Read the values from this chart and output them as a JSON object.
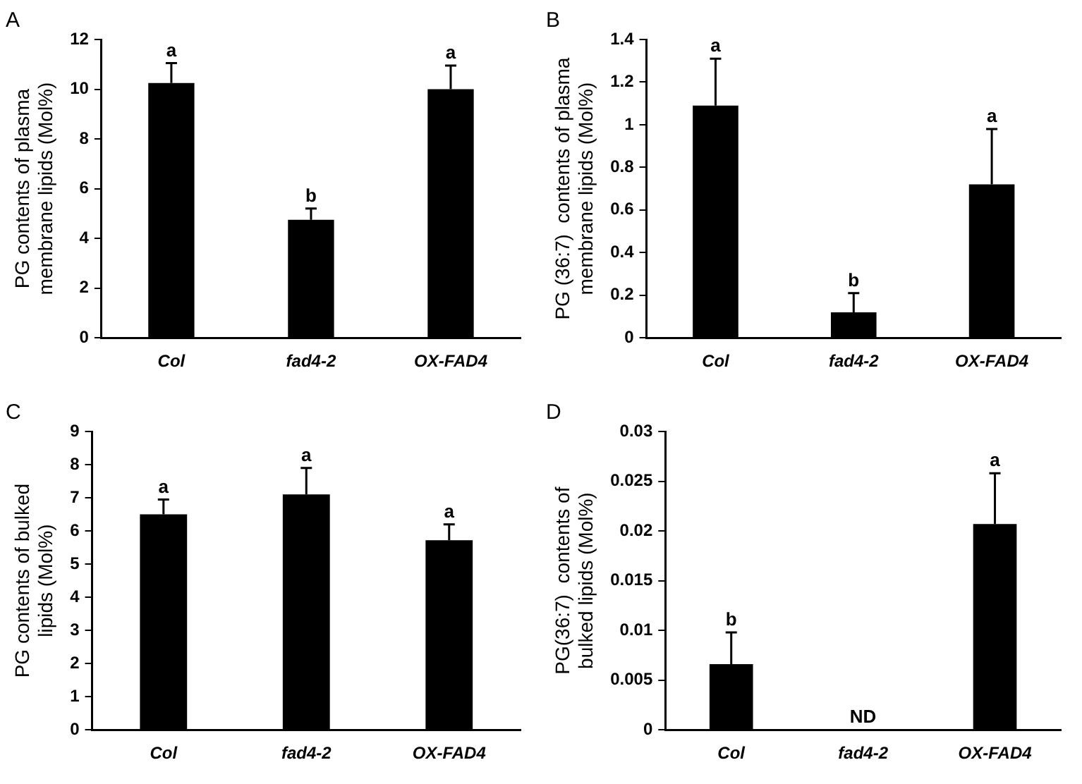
{
  "chart_data": [
    {
      "type": "bar",
      "title": "A",
      "ylabel": "PG contents of plasma\nmembrane lipids (Mol%)",
      "categories": [
        "Col",
        "fad4-2",
        "OX-FAD4"
      ],
      "values": [
        10.25,
        4.75,
        10.0
      ],
      "color": "#000000",
      "errors": [
        [
          10.25,
          11.05
        ],
        [
          4.75,
          5.2
        ],
        [
          10.0,
          10.95
        ]
      ],
      "ylim": [
        0,
        12
      ],
      "yticks": [
        0,
        2,
        4,
        6,
        8,
        10,
        12
      ],
      "grid": false,
      "annotations": [
        {
          "text": "a",
          "x": "Col",
          "y": 11.05
        },
        {
          "text": "b",
          "x": "fad4-2",
          "y": 5.2
        },
        {
          "text": "a",
          "x": "OX-FAD4",
          "y": 10.95
        }
      ]
    },
    {
      "type": "bar",
      "title": "B",
      "ylabel": "PG (36:7)  contents of plasma\nmembrane lipids (Mol%)",
      "categories": [
        "Col",
        "fad4-2",
        "OX-FAD4"
      ],
      "values": [
        1.09,
        0.12,
        0.72
      ],
      "color": "#000000",
      "errors": [
        [
          1.09,
          1.31
        ],
        [
          0.12,
          0.21
        ],
        [
          0.72,
          0.98
        ]
      ],
      "ylim": [
        0,
        1.4
      ],
      "yticks": [
        0,
        0.2,
        0.4,
        0.6,
        0.8,
        1,
        1.2,
        1.4
      ],
      "grid": false,
      "annotations": [
        {
          "text": "a",
          "x": "Col",
          "y": 1.31
        },
        {
          "text": "b",
          "x": "fad4-2",
          "y": 0.21
        },
        {
          "text": "a",
          "x": "OX-FAD4",
          "y": 0.98
        }
      ]
    },
    {
      "type": "bar",
      "title": "C",
      "ylabel": "PG contents of bulked\nlipids (Mol%)",
      "categories": [
        "Col",
        "fad4-2",
        "OX-FAD4"
      ],
      "values": [
        6.5,
        7.1,
        5.72
      ],
      "color": "#000000",
      "errors": [
        [
          6.5,
          6.95
        ],
        [
          7.1,
          7.9
        ],
        [
          5.72,
          6.2
        ]
      ],
      "ylim": [
        0,
        9
      ],
      "yticks": [
        0,
        1,
        2,
        3,
        4,
        5,
        6,
        7,
        8,
        9
      ],
      "grid": false,
      "annotations": [
        {
          "text": "a",
          "x": "Col",
          "y": 6.95
        },
        {
          "text": "a",
          "x": "fad4-2",
          "y": 7.9
        },
        {
          "text": "a",
          "x": "OX-FAD4",
          "y": 6.2
        }
      ]
    },
    {
      "type": "bar",
      "title": "D",
      "ylabel": "PG(36:7)  contents of\nbulked lipids (Mol%)",
      "categories": [
        "Col",
        "fad4-2",
        "OX-FAD4"
      ],
      "values": [
        0.0066,
        null,
        0.0207
      ],
      "color": "#000000",
      "errors": [
        [
          0.0066,
          0.0098
        ],
        null,
        [
          0.0207,
          0.0258
        ]
      ],
      "ylim": [
        0,
        0.03
      ],
      "yticks": [
        0,
        0.005,
        0.01,
        0.015,
        0.02,
        0.025,
        0.03
      ],
      "grid": false,
      "value_labels": [
        null,
        "ND",
        null
      ],
      "annotations": [
        {
          "text": "b",
          "x": "Col",
          "y": 0.0098
        },
        {
          "text": "a",
          "x": "OX-FAD4",
          "y": 0.0258
        }
      ]
    }
  ]
}
